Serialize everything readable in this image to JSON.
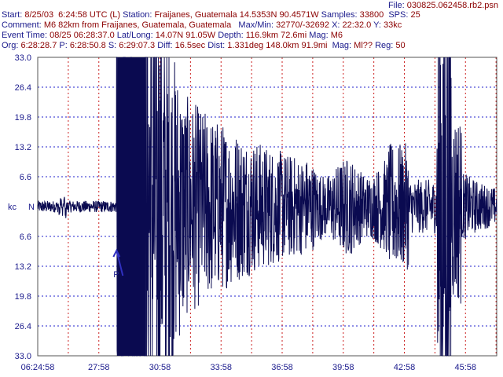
{
  "header": {
    "file_label": "File:",
    "file_value": "030825.062458.rb2.psn",
    "start_label": "Start:",
    "start_value": "8/25/03  6:24:58 UTC (L)",
    "station_label": "Station:",
    "station_value": "Fraijanes, Guatemala 14.5353N 90.4571W",
    "samples_label": "Samples:",
    "samples_value": "33800",
    "sps_label": "SPS:",
    "sps_value": "25",
    "comment_label": "Comment:",
    "comment_value": "M6 82km from Fraijanes, Guatemala, Guatemala",
    "maxmin_label": "Max/Min:",
    "maxmin_value": "32770/-32692",
    "x_label": "X:",
    "x_value": "22:32.0",
    "y_label": "Y:",
    "y_value": "33kc",
    "event_label": "Event Time:",
    "event_value": "08/25 06:28:37.0",
    "latlong_label": "Lat/Long:",
    "latlong_value": "14.07N 91.05W",
    "depth_label": "Depth:",
    "depth_value": "116.9km 72.6mi",
    "mag_label": "Mag:",
    "mag_value": "M6",
    "org_label": "Org:",
    "org_value": "6:28:28.7",
    "p_label": "P:",
    "p_value": "6:28:50.8",
    "s_label": "S:",
    "s_value": "6:29:07.3",
    "diff_label": "Diff:",
    "diff_value": "16.5sec",
    "dist_label": "Dist:",
    "dist_value": "1.331deg 148.0km 91.9mi",
    "mag2_label": "Mag:",
    "mag2_value": "Ml??",
    "reg_label": "Reg:",
    "reg_value": "50"
  },
  "chart_data": {
    "type": "line",
    "ylabel": "kc",
    "y_ticks_upper": [
      "33.0",
      "26.4",
      "19.8",
      "13.2",
      "6.6"
    ],
    "y_center_label": "N",
    "y_ticks_lower": [
      "6.6",
      "13.2",
      "19.8",
      "26.4",
      "33.0"
    ],
    "ylim": [
      -33.0,
      33.0
    ],
    "x_ticks": [
      "06:24:58",
      "27:58",
      "30:58",
      "33:58",
      "36:58",
      "39:58",
      "42:58",
      "45:58"
    ],
    "xlim_minutes": [
      0,
      22.533
    ],
    "p_marker_label": "P",
    "p_marker_minutes": 3.87,
    "clipping_minutes": [
      3.9,
      5.3
    ],
    "colors": {
      "trace": "#0a0a50",
      "axis_text": "#1a1a8c",
      "grid_h": "#2222cc",
      "grid_v": "#cc2222",
      "marker": "#3030c0"
    },
    "gridlines": true
  }
}
